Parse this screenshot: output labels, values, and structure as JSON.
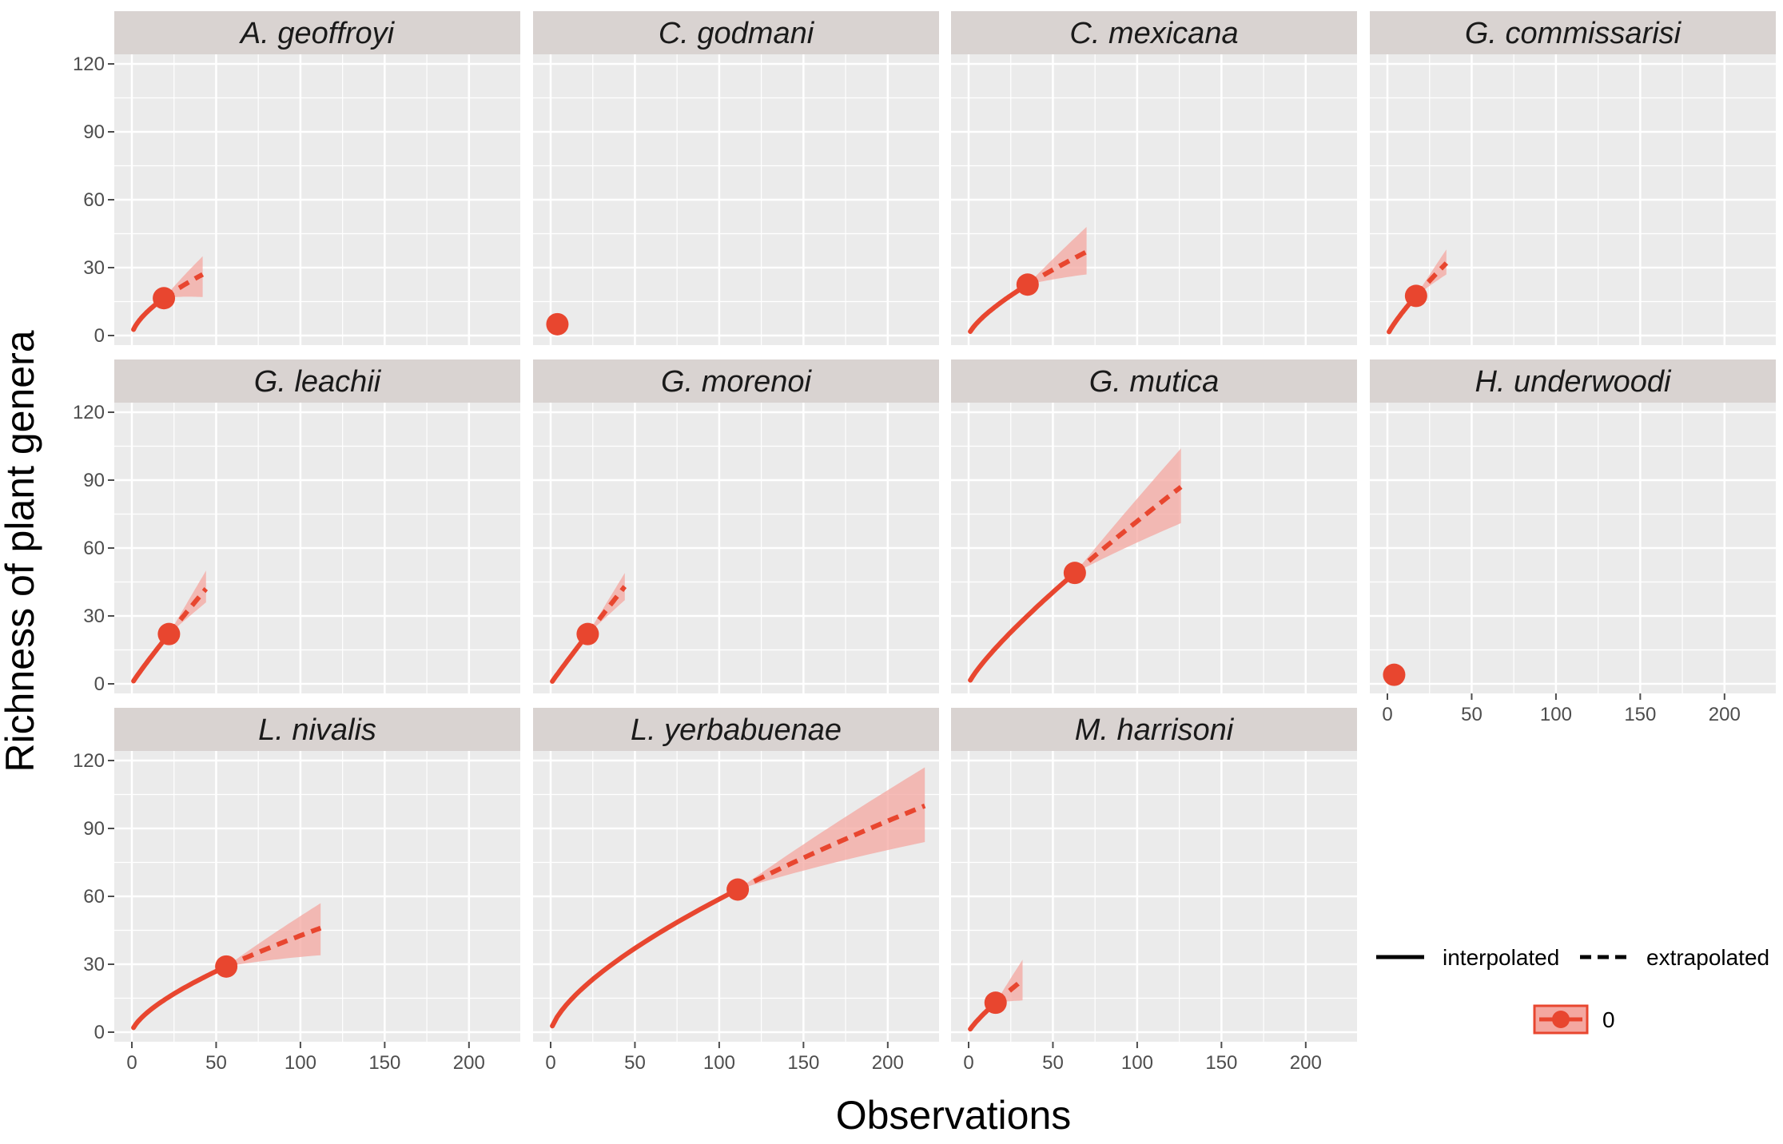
{
  "figure": {
    "x_axis_title": "Observations",
    "y_axis_title": "Richness of plant genera"
  },
  "legend": {
    "interpolated_label": "interpolated",
    "extrapolated_label": "extrapolated",
    "group_label": "0"
  },
  "colors": {
    "series": "#e8462f",
    "ribbon": "#f4a7a0",
    "panel_bg": "#ebebeb",
    "strip_bg": "#d9d3d1",
    "grid": "#ffffff"
  },
  "chart_data": {
    "type": "line",
    "facet_layout": "4 columns x 3 rows, shared axes",
    "xlim": [
      0,
      220
    ],
    "ylim": [
      0,
      120
    ],
    "x_ticks": [
      0,
      50,
      100,
      150,
      200
    ],
    "y_ticks": [
      0,
      30,
      60,
      90,
      120
    ],
    "grid": true,
    "legend_position": "bottom-right",
    "line_styles": {
      "interpolated": "solid",
      "extrapolated": "dashed"
    },
    "panels": [
      {
        "title": "A. geoffroyi",
        "observed": [
          19,
          16.5
        ],
        "interp_end": 19,
        "extrap_end": [
          42,
          27
        ],
        "ci_end": [
          17,
          35
        ]
      },
      {
        "title": "C. godmani",
        "observed": [
          4,
          5
        ],
        "interp_end": 4,
        "extrap_end": [
          7,
          6
        ],
        "ci_end": [
          4,
          8
        ]
      },
      {
        "title": "C. mexicana",
        "observed": [
          35,
          22.5
        ],
        "interp_end": 35,
        "extrap_end": [
          70,
          37
        ],
        "ci_end": [
          27,
          48
        ]
      },
      {
        "title": "G. commissarisi",
        "observed": [
          17,
          17.5
        ],
        "interp_end": 17,
        "extrap_end": [
          35,
          32
        ],
        "ci_end": [
          27,
          38
        ]
      },
      {
        "title": "G. leachii",
        "observed": [
          22,
          22
        ],
        "interp_end": 22,
        "extrap_end": [
          44,
          42
        ],
        "ci_end": [
          36,
          50
        ]
      },
      {
        "title": "G. morenoi",
        "observed": [
          22,
          22
        ],
        "interp_end": 22,
        "extrap_end": [
          44,
          43
        ],
        "ci_end": [
          37,
          49
        ]
      },
      {
        "title": "G. mutica",
        "observed": [
          63,
          49
        ],
        "interp_end": 63,
        "extrap_end": [
          126,
          87
        ],
        "ci_end": [
          71,
          104
        ]
      },
      {
        "title": "H. underwoodi",
        "observed": [
          4,
          4
        ],
        "interp_end": 4,
        "extrap_end": [
          7,
          5
        ],
        "ci_end": [
          3,
          7
        ]
      },
      {
        "title": "L. nivalis",
        "observed": [
          56,
          29
        ],
        "interp_end": 56,
        "extrap_end": [
          112,
          46
        ],
        "ci_end": [
          34,
          57
        ]
      },
      {
        "title": "L. yerbabuenae",
        "observed": [
          111,
          63
        ],
        "interp_end": 111,
        "extrap_end": [
          222,
          100
        ],
        "ci_end": [
          84,
          117
        ]
      },
      {
        "title": "M. harrisoni",
        "observed": [
          16,
          13
        ],
        "interp_end": 16,
        "extrap_end": [
          32,
          23
        ],
        "ci_end": [
          14,
          32
        ]
      }
    ]
  }
}
